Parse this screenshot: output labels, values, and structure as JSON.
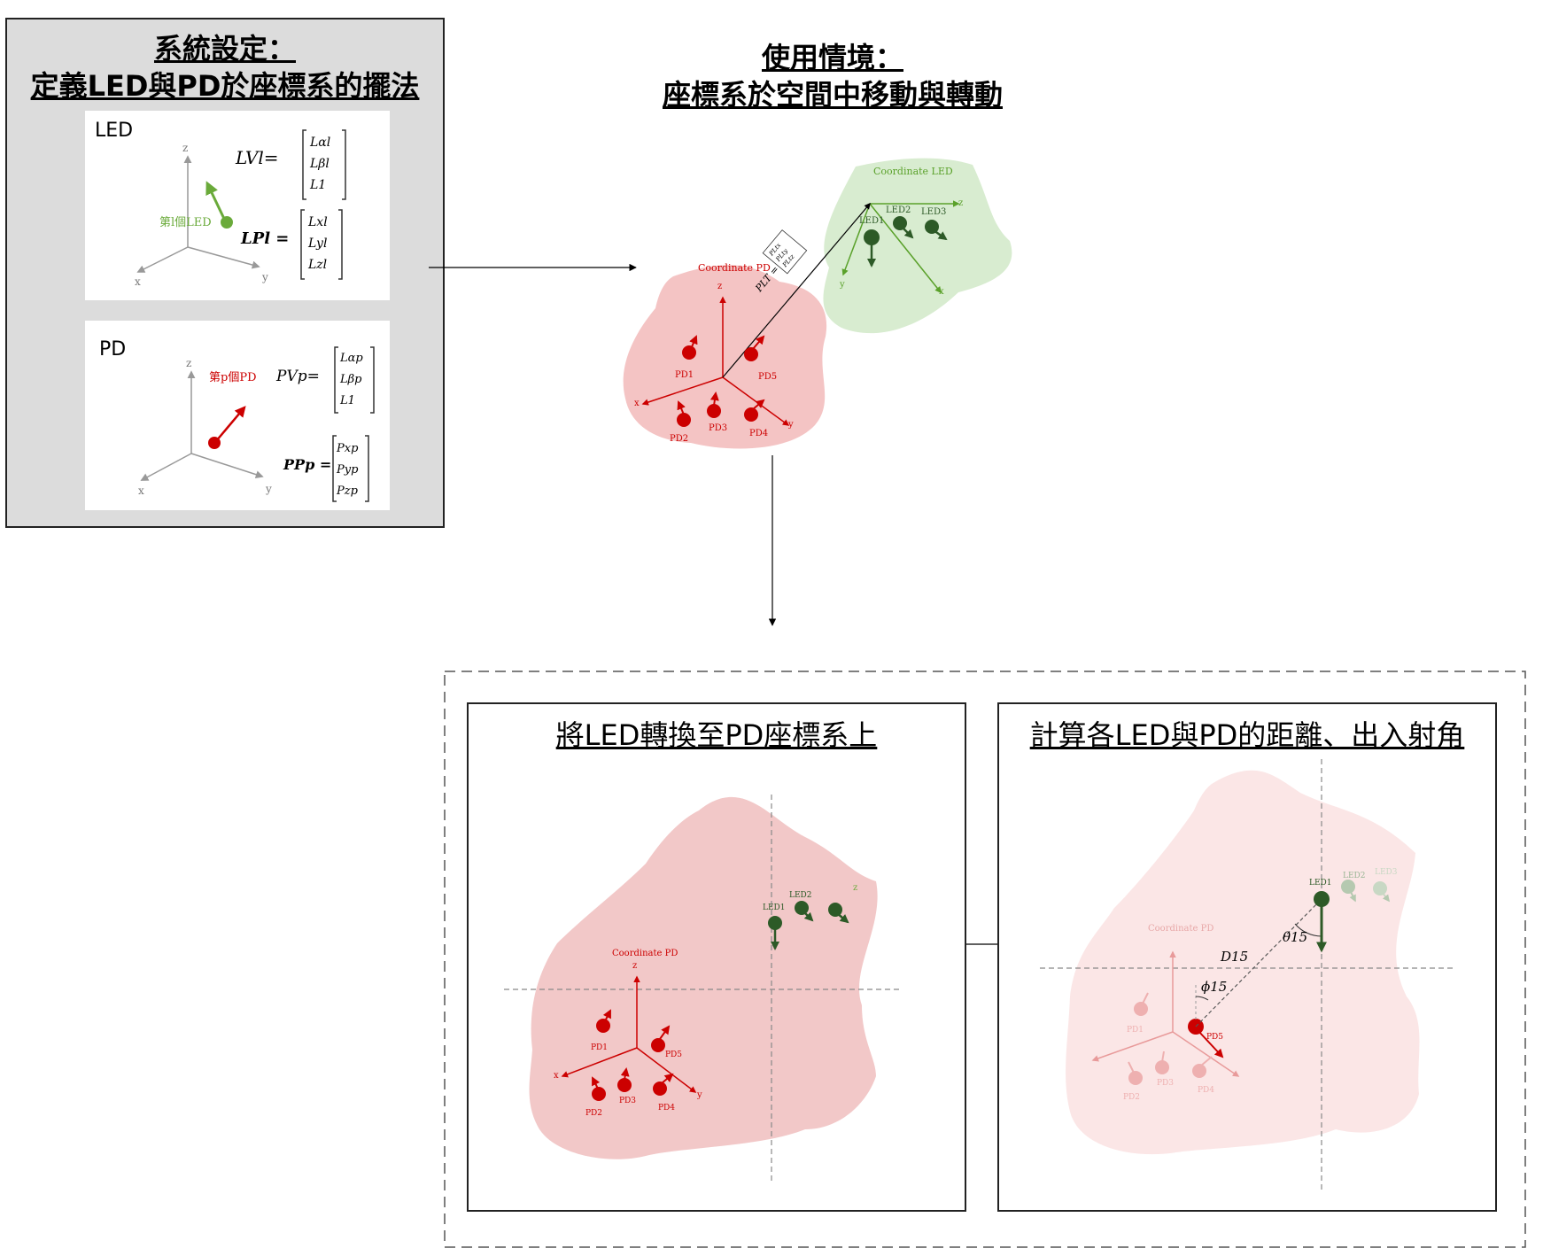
{
  "left_panel": {
    "title_line1": "系統設定：",
    "title_line2": "定義LED與PD於座標系的擺法",
    "led_card": {
      "label": "LED",
      "item_label": "第l個LED",
      "eq1_lhs": "LVl=",
      "eq1_vec": [
        "Lαl",
        "Lβl",
        "L1"
      ],
      "eq2_lhs": "LPl =",
      "eq2_vec": [
        "Lxl",
        "Lyl",
        "Lzl"
      ]
    },
    "pd_card": {
      "label": "PD",
      "item_label": "第p個PD",
      "eq1_lhs": "PVp=",
      "eq1_vec": [
        "Lαp",
        "Lβp",
        "L1"
      ],
      "eq2_lhs": "PPp =",
      "eq2_vec": [
        "Pxp",
        "Pyp",
        "Pzp"
      ]
    },
    "axes": {
      "x": "x",
      "y": "y",
      "z": "z"
    }
  },
  "scenario": {
    "title_line1": "使用情境：",
    "title_line2": "座標系於空間中移動與轉動",
    "coord_led_label": "Coordinate LED",
    "coord_pd_label": "Coordinate PD",
    "transform_label": "PLT =",
    "transform_vec": [
      "PLtx",
      "PLty",
      "PLtz"
    ],
    "led_labels": [
      "LED1",
      "LED2",
      "LED3"
    ],
    "pd_labels": [
      "PD1",
      "PD2",
      "PD3",
      "PD4",
      "PD5"
    ]
  },
  "step1": {
    "title": "將LED轉換至PD座標系上",
    "coord_pd_label": "Coordinate PD",
    "led_labels": [
      "LED1",
      "LED2"
    ],
    "pd_labels": [
      "PD1",
      "PD2",
      "PD3",
      "PD4",
      "PD5"
    ]
  },
  "step2": {
    "title": "計算各LED與PD的距離、出入射角",
    "coord_pd_label": "Coordinate PD",
    "distance_label": "D15",
    "theta_label": "θ15",
    "phi_label": "ϕ15",
    "led_labels": [
      "LED1",
      "LED2",
      "LED3"
    ],
    "pd_labels": [
      "PD1",
      "PD2",
      "PD3",
      "PD4",
      "PD5"
    ]
  },
  "colors": {
    "led_green": "#6aaa3a",
    "led_dark": "#2d5a27",
    "pd_red": "#cc0000",
    "pd_blob": "#f4c4c4",
    "led_blob": "#d8ecd0",
    "panel_gray": "#dcdcdc"
  }
}
